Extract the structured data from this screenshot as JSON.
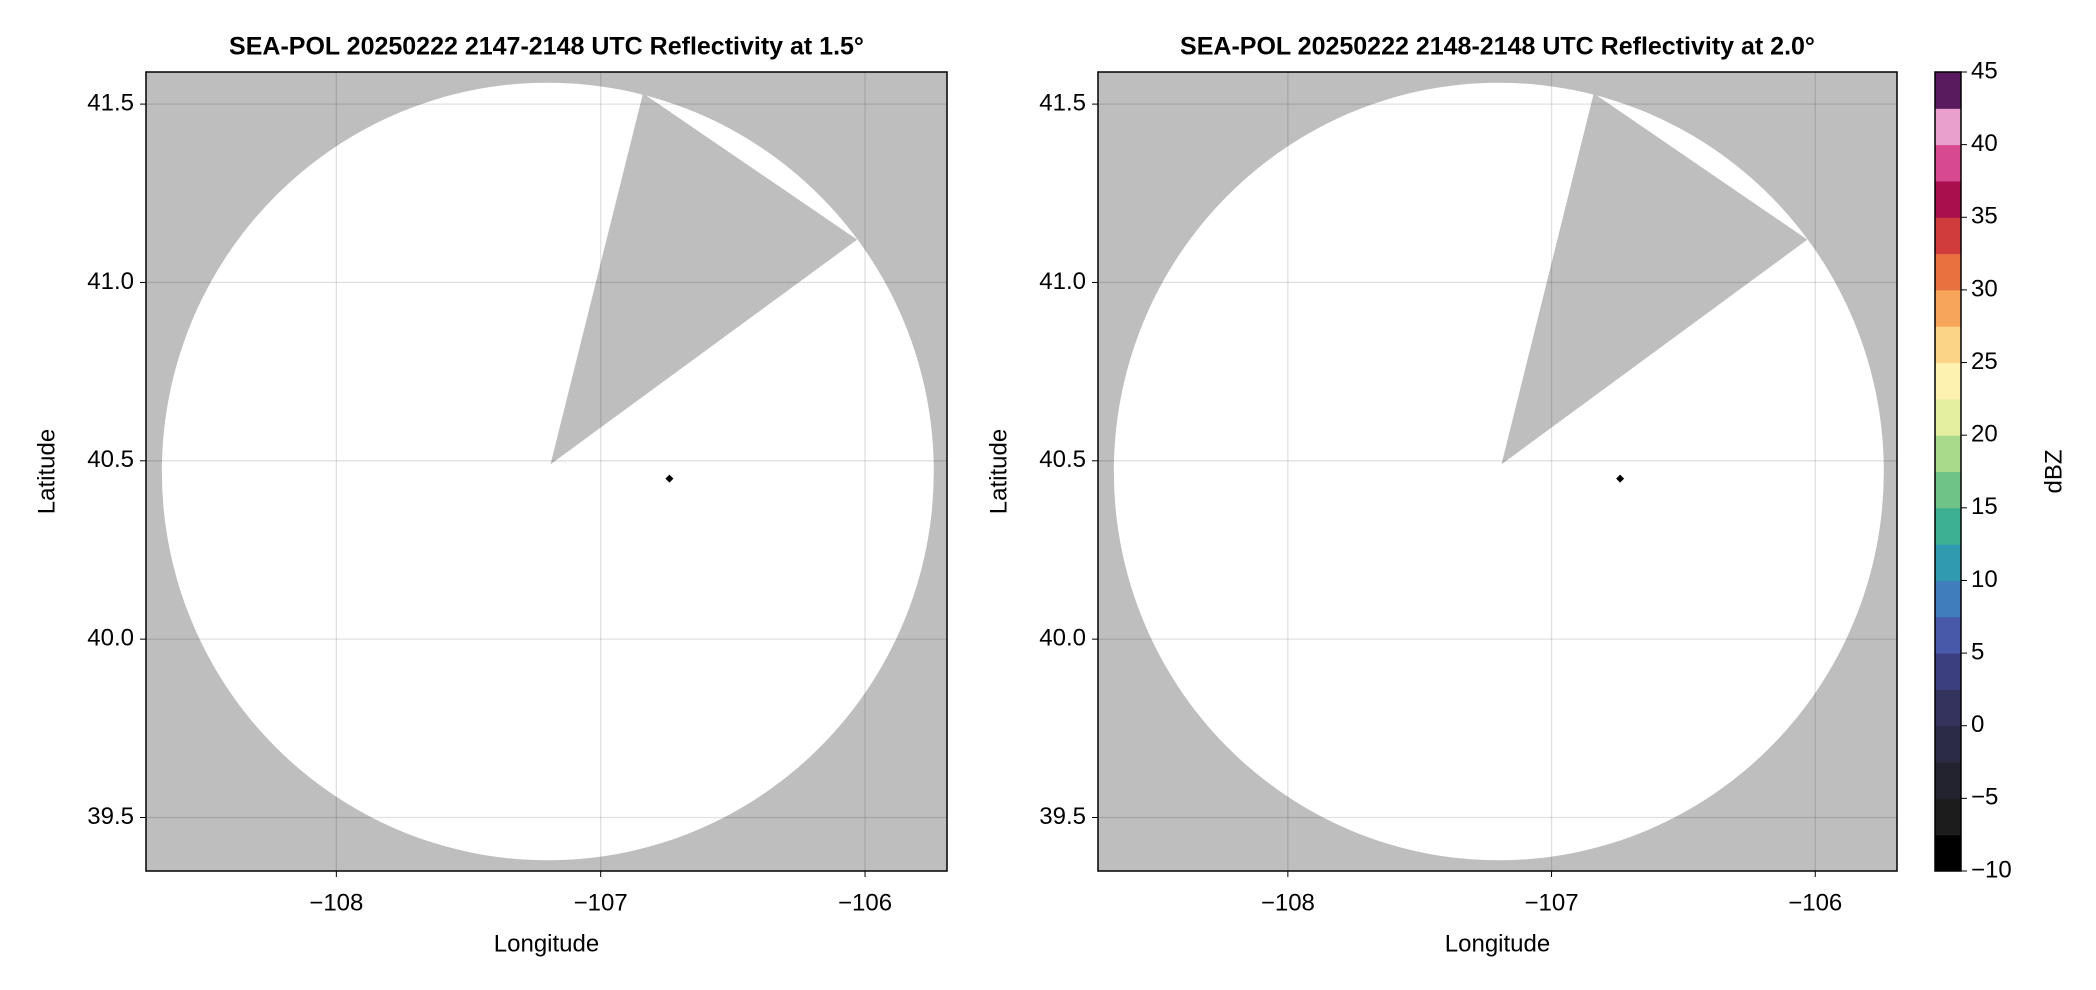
{
  "chart_data": [
    {
      "type": "map",
      "title": "SEA-POL 20250222 2147-2148 UTC Reflectivity at 1.5°",
      "xlabel": "Longitude",
      "ylabel": "Latitude",
      "xlim": [
        -108.72,
        -105.69
      ],
      "ylim": [
        39.35,
        41.59
      ],
      "xticks": [
        {
          "value": -108,
          "label": "−108"
        },
        {
          "value": -107,
          "label": "−107"
        },
        {
          "value": -106,
          "label": "−106"
        }
      ],
      "yticks": [
        39.5,
        {
          "value": 40,
          "label": "40.0"
        },
        40.5,
        {
          "value": 41,
          "label": "41.0"
        },
        41.5
      ],
      "grid": true,
      "background": "#bebebe",
      "coverage_color": "#ffffff",
      "coverage": {
        "center": [
          -107.2,
          40.47
        ],
        "radius": [
          1.46,
          1.09
        ]
      },
      "blocked_sector": {
        "x": [
          -107.19,
          -106.84,
          -106.03
        ],
        "y": [
          40.49,
          41.53,
          41.12
        ]
      },
      "marker": {
        "x": -106.74,
        "y": 40.45,
        "color": "#000000"
      }
    },
    {
      "type": "map",
      "title": "SEA-POL 20250222 2148-2148 UTC Reflectivity at 2.0°",
      "xlabel": "Longitude",
      "ylabel": "Latitude",
      "xlim": [
        -108.72,
        -105.69
      ],
      "ylim": [
        39.35,
        41.59
      ],
      "xticks": [
        {
          "value": -108,
          "label": "−108"
        },
        {
          "value": -107,
          "label": "−107"
        },
        {
          "value": -106,
          "label": "−106"
        }
      ],
      "yticks": [
        39.5,
        {
          "value": 40,
          "label": "40.0"
        },
        40.5,
        {
          "value": 41,
          "label": "41.0"
        },
        41.5
      ],
      "grid": true,
      "background": "#bebebe",
      "coverage_color": "#ffffff",
      "coverage": {
        "center": [
          -107.2,
          40.47
        ],
        "radius": [
          1.46,
          1.09
        ]
      },
      "blocked_sector": {
        "x": [
          -107.19,
          -106.84,
          -106.03
        ],
        "y": [
          40.49,
          41.53,
          41.12
        ]
      },
      "marker": {
        "x": -106.74,
        "y": 40.45,
        "color": "#000000"
      }
    },
    {
      "type": "colorbar",
      "label": "dBZ",
      "ylim": [
        -10,
        45
      ],
      "levels": [
        -10,
        -7.5,
        -5,
        -2.5,
        0,
        2.5,
        5,
        7.5,
        10,
        12.5,
        15,
        17.5,
        20,
        22.5,
        25,
        27.5,
        30,
        32.5,
        35,
        37.5,
        40,
        42.5,
        45
      ],
      "colors": [
        "#000000",
        "#1c1c1c",
        "#23232f",
        "#2b2b45",
        "#33335e",
        "#3b3f80",
        "#4759a8",
        "#3f7dbd",
        "#2f9ab0",
        "#3daf92",
        "#6fc386",
        "#a9d98a",
        "#e5efa0",
        "#fdf2b0",
        "#fbd487",
        "#f6a55a",
        "#e9703f",
        "#d03c3c",
        "#a80f4c",
        "#d74a92",
        "#eaa0cc",
        "#5a1a5e"
      ],
      "yticks": [
        {
          "value": -10,
          "label": "−10"
        },
        {
          "value": -5,
          "label": "−5"
        },
        0,
        5,
        10,
        15,
        20,
        25,
        30,
        35,
        40,
        45
      ]
    }
  ]
}
